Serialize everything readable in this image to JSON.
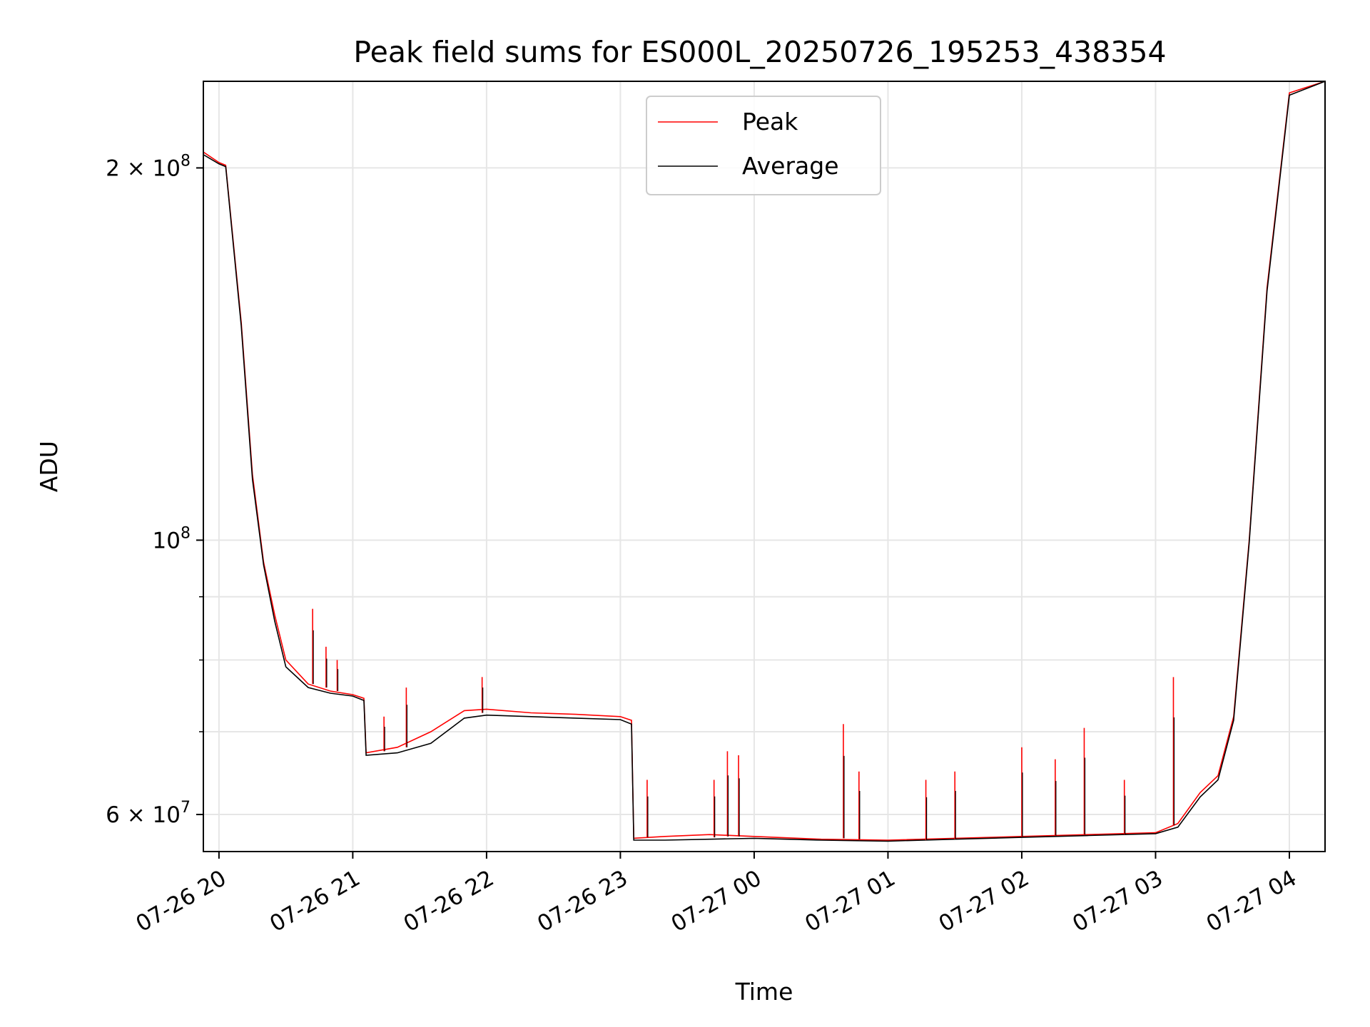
{
  "chart_data": {
    "type": "line",
    "title": "Peak field sums for ES000L_20250726_195253_438354",
    "xlabel": "Time",
    "ylabel": "ADU",
    "x_axis_type": "datetime",
    "y_scale": "log",
    "xlim": [
      "2025-07-26 19:53",
      "2025-07-27 04:16"
    ],
    "ylim": [
      56000000,
      235000000
    ],
    "grid": true,
    "legend_position": "top-center",
    "x_ticks": [
      {
        "value": "2025-07-26 20:00",
        "label": "07-26 20"
      },
      {
        "value": "2025-07-26 21:00",
        "label": "07-26 21"
      },
      {
        "value": "2025-07-26 22:00",
        "label": "07-26 22"
      },
      {
        "value": "2025-07-26 23:00",
        "label": "07-26 23"
      },
      {
        "value": "2025-07-27 00:00",
        "label": "07-27 00"
      },
      {
        "value": "2025-07-27 01:00",
        "label": "07-27 01"
      },
      {
        "value": "2025-07-27 02:00",
        "label": "07-27 02"
      },
      {
        "value": "2025-07-27 03:00",
        "label": "07-27 03"
      },
      {
        "value": "2025-07-27 04:00",
        "label": "07-27 04"
      }
    ],
    "y_ticks": [
      {
        "value": 60000000,
        "base": "6 × 10",
        "exp": "7"
      },
      {
        "value": 100000000,
        "base": "10",
        "exp": "8"
      },
      {
        "value": 200000000,
        "base": "2 × 10",
        "exp": "8"
      }
    ],
    "y_minor_ticks": [
      70000000,
      80000000,
      90000000
    ],
    "series": [
      {
        "name": "Peak",
        "color": "#ff0000",
        "x": [
          "2025-07-26 19:53",
          "2025-07-26 20:00",
          "2025-07-26 20:03",
          "2025-07-26 20:10",
          "2025-07-26 20:15",
          "2025-07-26 20:20",
          "2025-07-26 20:25",
          "2025-07-26 20:30",
          "2025-07-26 20:40",
          "2025-07-26 20:50",
          "2025-07-26 21:00",
          "2025-07-26 21:05",
          "2025-07-26 21:06",
          "2025-07-26 21:20",
          "2025-07-26 21:35",
          "2025-07-26 21:50",
          "2025-07-26 22:00",
          "2025-07-26 22:20",
          "2025-07-26 22:40",
          "2025-07-26 23:00",
          "2025-07-26 23:05",
          "2025-07-26 23:06",
          "2025-07-26 23:20",
          "2025-07-26 23:40",
          "2025-07-27 00:00",
          "2025-07-27 00:30",
          "2025-07-27 01:00",
          "2025-07-27 01:30",
          "2025-07-27 02:00",
          "2025-07-27 02:30",
          "2025-07-27 03:00",
          "2025-07-27 03:10",
          "2025-07-27 03:20",
          "2025-07-27 03:28",
          "2025-07-27 03:35",
          "2025-07-27 03:42",
          "2025-07-27 03:50",
          "2025-07-27 04:00",
          "2025-07-27 04:16"
        ],
        "values": [
          206000000,
          202000000,
          201000000,
          150000000,
          113000000,
          96000000,
          87000000,
          80000000,
          76500000,
          75500000,
          75000000,
          74500000,
          67300000,
          68000000,
          70000000,
          72800000,
          73000000,
          72500000,
          72300000,
          72000000,
          71500000,
          57400000,
          57600000,
          57800000,
          57600000,
          57300000,
          57200000,
          57400000,
          57600000,
          57800000,
          58000000,
          59000000,
          62500000,
          64500000,
          72000000,
          100000000,
          160000000,
          230000000,
          235000000
        ]
      },
      {
        "name": "Average",
        "color": "#000000",
        "x": [
          "2025-07-26 19:53",
          "2025-07-26 20:00",
          "2025-07-26 20:03",
          "2025-07-26 20:10",
          "2025-07-26 20:15",
          "2025-07-26 20:20",
          "2025-07-26 20:25",
          "2025-07-26 20:30",
          "2025-07-26 20:40",
          "2025-07-26 20:50",
          "2025-07-26 21:00",
          "2025-07-26 21:05",
          "2025-07-26 21:06",
          "2025-07-26 21:20",
          "2025-07-26 21:35",
          "2025-07-26 21:50",
          "2025-07-26 22:00",
          "2025-07-26 22:20",
          "2025-07-26 22:40",
          "2025-07-26 23:00",
          "2025-07-26 23:05",
          "2025-07-26 23:06",
          "2025-07-26 23:20",
          "2025-07-26 23:40",
          "2025-07-27 00:00",
          "2025-07-27 00:30",
          "2025-07-27 01:00",
          "2025-07-27 01:30",
          "2025-07-27 02:00",
          "2025-07-27 02:30",
          "2025-07-27 03:00",
          "2025-07-27 03:10",
          "2025-07-27 03:20",
          "2025-07-27 03:28",
          "2025-07-27 03:35",
          "2025-07-27 03:42",
          "2025-07-27 03:50",
          "2025-07-27 04:00",
          "2025-07-27 04:16"
        ],
        "values": [
          205000000,
          201500000,
          200500000,
          149000000,
          112000000,
          95500000,
          86000000,
          79000000,
          76000000,
          75200000,
          74800000,
          74200000,
          67000000,
          67300000,
          68500000,
          71800000,
          72200000,
          72000000,
          71800000,
          71600000,
          71000000,
          57200000,
          57200000,
          57300000,
          57400000,
          57200000,
          57100000,
          57300000,
          57500000,
          57700000,
          57900000,
          58600000,
          62000000,
          64000000,
          71500000,
          99500000,
          159000000,
          229000000,
          235000000
        ]
      }
    ],
    "spikes": [
      {
        "x": "2025-07-26 20:42",
        "peak": 88000000,
        "base": 76500000
      },
      {
        "x": "2025-07-26 20:48",
        "peak": 82000000,
        "base": 76000000
      },
      {
        "x": "2025-07-26 20:53",
        "peak": 80000000,
        "base": 75500000
      },
      {
        "x": "2025-07-26 21:14",
        "peak": 72000000,
        "base": 67500000
      },
      {
        "x": "2025-07-26 21:24",
        "peak": 76000000,
        "base": 68000000
      },
      {
        "x": "2025-07-26 21:58",
        "peak": 77500000,
        "base": 72500000
      },
      {
        "x": "2025-07-26 23:12",
        "peak": 64000000,
        "base": 57500000
      },
      {
        "x": "2025-07-26 23:42",
        "peak": 64000000,
        "base": 57500000
      },
      {
        "x": "2025-07-26 23:48",
        "peak": 67500000,
        "base": 57600000
      },
      {
        "x": "2025-07-26 23:53",
        "peak": 67000000,
        "base": 57600000
      },
      {
        "x": "2025-07-27 00:40",
        "peak": 71000000,
        "base": 57400000
      },
      {
        "x": "2025-07-27 00:47",
        "peak": 65000000,
        "base": 57300000
      },
      {
        "x": "2025-07-27 01:17",
        "peak": 64000000,
        "base": 57200000
      },
      {
        "x": "2025-07-27 01:30",
        "peak": 65000000,
        "base": 57300000
      },
      {
        "x": "2025-07-27 02:00",
        "peak": 68000000,
        "base": 57600000
      },
      {
        "x": "2025-07-27 02:15",
        "peak": 66500000,
        "base": 57700000
      },
      {
        "x": "2025-07-27 02:28",
        "peak": 70500000,
        "base": 57800000
      },
      {
        "x": "2025-07-27 02:46",
        "peak": 64000000,
        "base": 57800000
      },
      {
        "x": "2025-07-27 03:08",
        "peak": 77500000,
        "base": 58800000
      }
    ]
  }
}
